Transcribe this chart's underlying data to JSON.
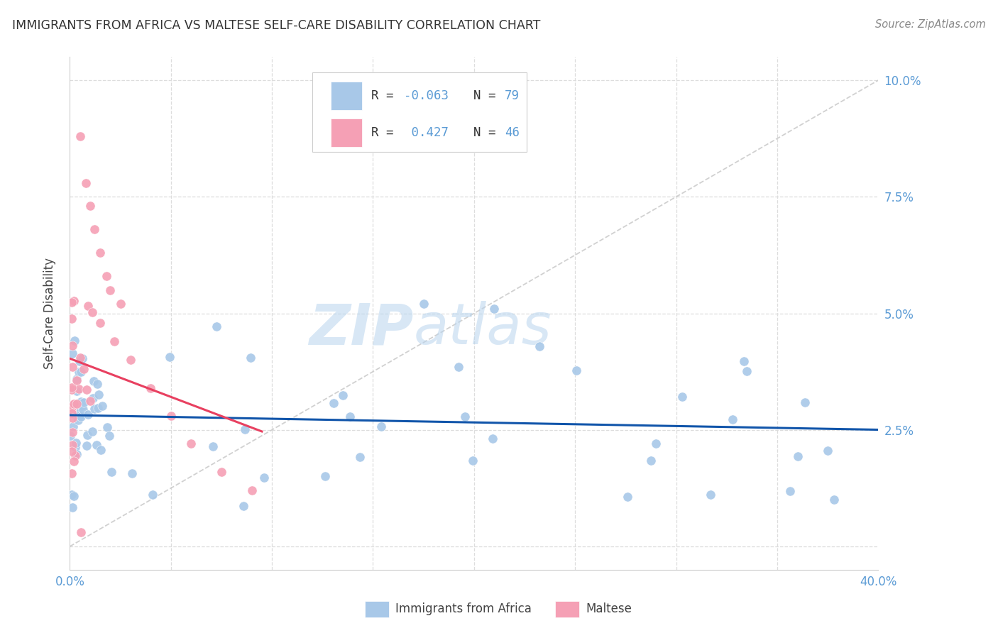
{
  "title": "IMMIGRANTS FROM AFRICA VS MALTESE SELF-CARE DISABILITY CORRELATION CHART",
  "source": "Source: ZipAtlas.com",
  "ylabel": "Self-Care Disability",
  "xlim": [
    0.0,
    0.4
  ],
  "ylim": [
    -0.005,
    0.105
  ],
  "xticks": [
    0.0,
    0.05,
    0.1,
    0.15,
    0.2,
    0.25,
    0.3,
    0.35,
    0.4
  ],
  "xtick_labels": [
    "0.0%",
    "",
    "",
    "",
    "",
    "",
    "",
    "",
    "40.0%"
  ],
  "yticks": [
    0.0,
    0.025,
    0.05,
    0.075,
    0.1
  ],
  "ytick_labels_left": [
    "",
    "",
    "",
    "",
    ""
  ],
  "ytick_labels_right": [
    "",
    "2.5%",
    "5.0%",
    "7.5%",
    "10.0%"
  ],
  "color_blue": "#a8c8e8",
  "color_pink": "#f5a0b5",
  "line_blue": "#1155aa",
  "line_pink": "#e84060",
  "line_gray_color": "#cccccc",
  "R_blue": -0.063,
  "N_blue": 79,
  "R_pink": 0.427,
  "N_pink": 46,
  "legend_label_blue": "Immigrants from Africa",
  "legend_label_pink": "Maltese",
  "tick_color": "#5b9bd5",
  "title_color": "#333333",
  "source_color": "#888888",
  "ylabel_color": "#444444"
}
